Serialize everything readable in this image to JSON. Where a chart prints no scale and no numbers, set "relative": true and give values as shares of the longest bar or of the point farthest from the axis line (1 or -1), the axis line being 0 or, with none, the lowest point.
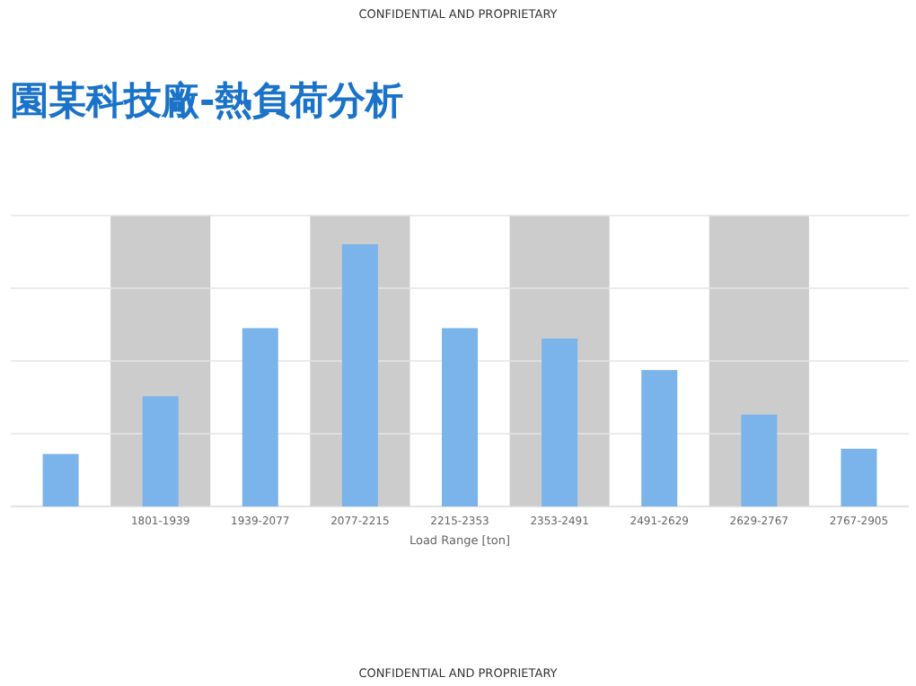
{
  "chart_data": {
    "type": "bar",
    "title": "園某科技廠-熱負荷分析",
    "xlabel": "Load Range [ton]",
    "relative": true,
    "grid": "y",
    "categories": [
      null,
      "1801-1939",
      "1939-2077",
      "2077-2215",
      "2215-2353",
      "2353-2491",
      "2491-2629",
      "2629-2767",
      "2767-2905"
    ],
    "values": [
      0.2,
      0.42,
      0.68,
      1,
      0.68,
      0.64,
      0.52,
      0.35,
      0.22
    ],
    "color": "#7ab4ea",
    "bands": [
      {
        "axis": "x",
        "from": "1801-1939",
        "to": "1801-1939",
        "color": "#cccccc"
      },
      {
        "axis": "x",
        "from": "2077-2215",
        "to": "2077-2215",
        "color": "#cccccc"
      },
      {
        "axis": "x",
        "from": "2353-2491",
        "to": "2353-2491",
        "color": "#cccccc"
      },
      {
        "axis": "x",
        "from": "2629-2767",
        "to": "2629-2767",
        "color": "#cccccc"
      }
    ],
    "annotations": [
      "CONFIDENTIAL AND PROPRIETARY",
      "CONFIDENTIAL AND PROPRIETARY"
    ]
  }
}
